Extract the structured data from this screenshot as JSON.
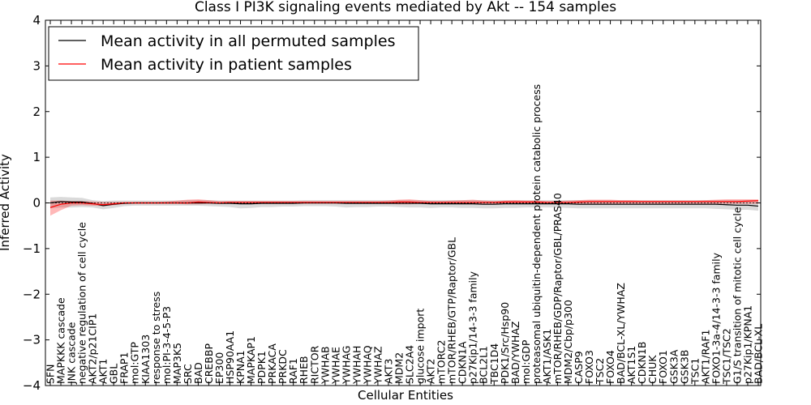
{
  "chart_data": {
    "type": "line",
    "title": "Class I PI3K signaling events mediated by Akt -- 154 samples",
    "xlabel": "Cellular Entities",
    "ylabel": "Inferred Activity",
    "ylim": [
      -4,
      4
    ],
    "yticks": [
      -4,
      -3,
      -2,
      -1,
      0,
      1,
      2,
      3,
      4
    ],
    "ytick_labels": [
      "−4",
      "−3",
      "−2",
      "−1",
      "0",
      "1",
      "2",
      "3",
      "4"
    ],
    "legend_position": "top-left",
    "categories": [
      "SFN",
      "MAPKKK cascade",
      "JNK cascade",
      "negative regulation of cell cycle",
      "AKT2/p21CIP1",
      "AKT1",
      "GBL",
      "FRAP1",
      "mol:GTP",
      "KIAA1303",
      "response to stress",
      "mol:PI-3-4-5-P3",
      "MAP3K5",
      "SRC",
      "BAD",
      "CREBBP",
      "EP300",
      "HSP90AA1",
      "KPNA1",
      "MAPKAP1",
      "PDPK1",
      "PRKACA",
      "PRKDC",
      "RAF1",
      "RHEB",
      "RICTOR",
      "YWHAB",
      "YWHAE",
      "YWHAG",
      "YWHAH",
      "YWHAQ",
      "YWHAZ",
      "AKT3",
      "MDM2",
      "SLC2A4",
      "glucose import",
      "AKT2",
      "mTORC2",
      "mTOR/RHEB/GTP/Raptor/GBL",
      "CDKN1A",
      "p27Kip1/14-3-3 family",
      "BCL2L1",
      "TBC1D4",
      "PDK1/Src/Hsp90",
      "BAD/YWHAZ",
      "mol:GDP",
      "proteasomal ubiquitin-dependent protein catabolic process",
      "AKT1/ASK1",
      "mTOR/RHEB/GDP/Raptor/GBL/PRAS40",
      "MDM2/Cbp/p300",
      "CASP9",
      "FOXO3",
      "TSC2",
      "FOXO4",
      "BAD/BCL-XL/YWHAZ",
      "AKT1S1",
      "CDKN1B",
      "CHUK",
      "FOXO1",
      "GSK3A",
      "GSK3B",
      "TSC1",
      "AKT1/RAF1",
      "FOXO1-3a-4/14-3-3 family",
      "TSC1/TSC2",
      "G1/S transition of mitotic cell cycle",
      "p27Kip1/KPNA1",
      "BAD/BCL-XL"
    ],
    "series": [
      {
        "name": "Mean activity in all permuted samples",
        "color": "#000000",
        "values": [
          0.0,
          0.03,
          0.02,
          0.02,
          -0.01,
          -0.06,
          -0.03,
          -0.01,
          0.0,
          0.0,
          0.0,
          0.0,
          0.0,
          0.0,
          0.0,
          0.0,
          -0.01,
          -0.01,
          -0.02,
          -0.02,
          -0.01,
          -0.01,
          -0.01,
          -0.01,
          0.0,
          0.0,
          0.0,
          0.0,
          -0.01,
          -0.01,
          -0.01,
          -0.01,
          -0.01,
          -0.01,
          -0.01,
          -0.01,
          -0.02,
          -0.02,
          -0.02,
          -0.02,
          -0.02,
          -0.03,
          -0.03,
          -0.02,
          -0.02,
          -0.02,
          -0.02,
          -0.02,
          -0.02,
          -0.02,
          -0.03,
          -0.03,
          -0.03,
          -0.03,
          -0.03,
          -0.03,
          -0.03,
          -0.03,
          -0.03,
          -0.03,
          -0.03,
          -0.03,
          -0.03,
          -0.03,
          -0.04,
          -0.05,
          -0.05,
          -0.07
        ],
        "band_upper": [
          0.12,
          0.13,
          0.12,
          0.11,
          0.06,
          0.04,
          0.05,
          0.05,
          0.05,
          0.05,
          0.05,
          0.05,
          0.05,
          0.06,
          0.06,
          0.06,
          0.05,
          0.05,
          0.05,
          0.05,
          0.05,
          0.05,
          0.05,
          0.05,
          0.06,
          0.06,
          0.06,
          0.06,
          0.06,
          0.06,
          0.06,
          0.06,
          0.06,
          0.06,
          0.06,
          0.06,
          0.06,
          0.06,
          0.06,
          0.06,
          0.06,
          0.06,
          0.06,
          0.06,
          0.06,
          0.06,
          0.06,
          0.06,
          0.06,
          0.06,
          0.06,
          0.06,
          0.06,
          0.06,
          0.06,
          0.06,
          0.06,
          0.06,
          0.06,
          0.06,
          0.06,
          0.06,
          0.06,
          0.06,
          0.06,
          0.06,
          0.06,
          0.06
        ],
        "band_lower": [
          -0.12,
          -0.1,
          -0.1,
          -0.09,
          -0.1,
          -0.14,
          -0.11,
          -0.07,
          -0.06,
          -0.06,
          -0.06,
          -0.06,
          -0.06,
          -0.06,
          -0.06,
          -0.07,
          -0.08,
          -0.09,
          -0.12,
          -0.11,
          -0.09,
          -0.09,
          -0.08,
          -0.08,
          -0.07,
          -0.07,
          -0.07,
          -0.08,
          -0.1,
          -0.09,
          -0.09,
          -0.08,
          -0.08,
          -0.09,
          -0.1,
          -0.1,
          -0.11,
          -0.1,
          -0.1,
          -0.11,
          -0.11,
          -0.12,
          -0.12,
          -0.11,
          -0.11,
          -0.1,
          -0.1,
          -0.1,
          -0.1,
          -0.11,
          -0.12,
          -0.12,
          -0.12,
          -0.12,
          -0.12,
          -0.12,
          -0.12,
          -0.12,
          -0.12,
          -0.12,
          -0.12,
          -0.12,
          -0.12,
          -0.13,
          -0.14,
          -0.15,
          -0.15,
          -0.17
        ]
      },
      {
        "name": "Mean activity in patient samples",
        "color": "#ff0000",
        "values": [
          -0.1,
          -0.03,
          0.0,
          0.0,
          -0.02,
          -0.04,
          -0.02,
          0.0,
          0.0,
          0.0,
          0.0,
          0.0,
          0.0,
          0.0,
          0.02,
          0.01,
          0.0,
          0.01,
          0.01,
          0.01,
          0.01,
          0.01,
          0.01,
          0.01,
          0.01,
          0.01,
          0.01,
          0.01,
          0.01,
          0.01,
          0.01,
          0.01,
          0.01,
          0.02,
          0.02,
          0.01,
          0.01,
          0.01,
          0.01,
          0.01,
          0.01,
          0.01,
          0.01,
          0.02,
          0.02,
          0.02,
          0.02,
          0.01,
          0.01,
          0.01,
          0.02,
          0.03,
          0.03,
          0.03,
          0.03,
          0.03,
          0.03,
          0.03,
          0.03,
          0.03,
          0.03,
          0.03,
          0.03,
          0.03,
          0.03,
          0.03,
          0.04,
          0.05
        ],
        "band_upper": [
          0.05,
          0.05,
          0.04,
          0.04,
          0.03,
          0.02,
          0.02,
          0.02,
          0.02,
          0.02,
          0.02,
          0.03,
          0.05,
          0.07,
          0.08,
          0.06,
          0.04,
          0.04,
          0.04,
          0.04,
          0.04,
          0.04,
          0.04,
          0.04,
          0.04,
          0.04,
          0.04,
          0.04,
          0.04,
          0.04,
          0.04,
          0.04,
          0.05,
          0.07,
          0.08,
          0.06,
          0.04,
          0.04,
          0.05,
          0.06,
          0.07,
          0.05,
          0.04,
          0.05,
          0.06,
          0.05,
          0.05,
          0.04,
          0.04,
          0.05,
          0.06,
          0.07,
          0.07,
          0.07,
          0.06,
          0.06,
          0.05,
          0.05,
          0.05,
          0.05,
          0.05,
          0.05,
          0.06,
          0.07,
          0.08,
          0.08,
          0.08,
          0.08
        ],
        "band_lower": [
          -0.28,
          -0.16,
          -0.06,
          -0.05,
          -0.06,
          -0.07,
          -0.05,
          -0.02,
          -0.02,
          -0.02,
          -0.02,
          -0.02,
          -0.02,
          -0.03,
          -0.03,
          -0.02,
          -0.02,
          -0.02,
          -0.02,
          -0.02,
          -0.02,
          -0.02,
          -0.02,
          -0.02,
          -0.02,
          -0.02,
          -0.02,
          -0.02,
          -0.02,
          -0.02,
          -0.02,
          -0.02,
          -0.02,
          -0.03,
          -0.03,
          -0.02,
          -0.02,
          -0.02,
          -0.02,
          -0.03,
          -0.03,
          -0.02,
          -0.02,
          -0.02,
          -0.02,
          -0.02,
          -0.02,
          -0.02,
          -0.02,
          -0.02,
          -0.02,
          -0.02,
          -0.02,
          -0.02,
          -0.02,
          -0.02,
          -0.02,
          -0.02,
          -0.02,
          -0.02,
          -0.02,
          -0.02,
          -0.02,
          -0.02,
          -0.02,
          -0.02,
          -0.02,
          -0.02
        ]
      }
    ]
  }
}
